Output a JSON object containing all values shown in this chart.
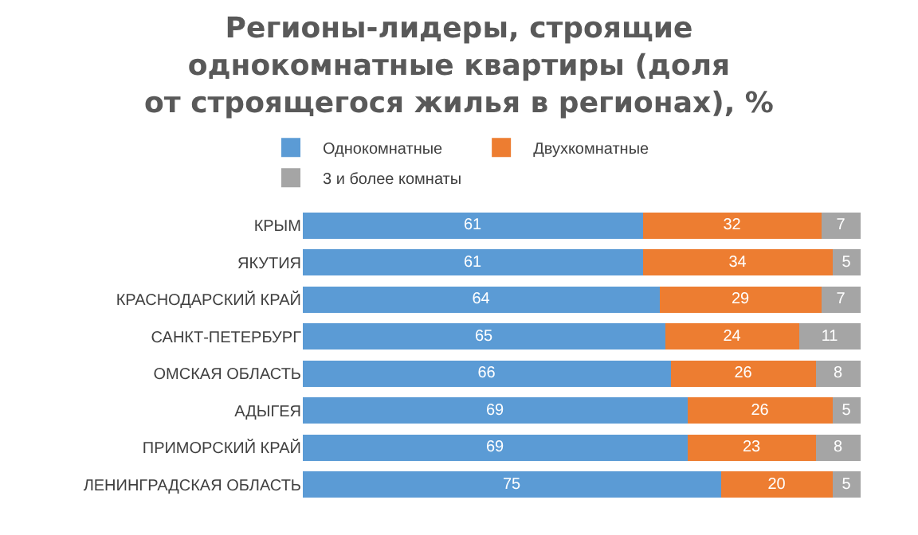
{
  "chart_data": {
    "type": "bar",
    "title": "Регионы-лидеры, строящие\nоднокомнатные квартиры (доля\nот строящегося жилья в регионах), %",
    "categories": [
      "КРЫМ",
      "ЯКУТИЯ",
      "КРАСНОДАРСКИЙ КРАЙ",
      "САНКТ-ПЕТЕРБУРГ",
      "ОМСКАЯ ОБЛАСТЬ",
      "АДЫГЕЯ",
      "ПРИМОРСКИЙ КРАЙ",
      "ЛЕНИНГРАДСКАЯ ОБЛАСТЬ"
    ],
    "series": [
      {
        "name": "Однокомнатные",
        "color": "#5b9bd5",
        "values": [
          61,
          61,
          64,
          65,
          66,
          69,
          69,
          75
        ]
      },
      {
        "name": "Двухкомнатные",
        "color": "#ed7d31",
        "values": [
          32,
          34,
          29,
          24,
          26,
          26,
          23,
          20
        ]
      },
      {
        "name": "3 и более комнаты",
        "color": "#a5a5a5",
        "values": [
          7,
          5,
          7,
          11,
          8,
          5,
          8,
          5
        ]
      }
    ],
    "orientation": "horizontal",
    "stacked": true,
    "xlim": [
      0,
      100
    ],
    "tick_labels": "y",
    "legend": "top",
    "data_labels": true
  }
}
